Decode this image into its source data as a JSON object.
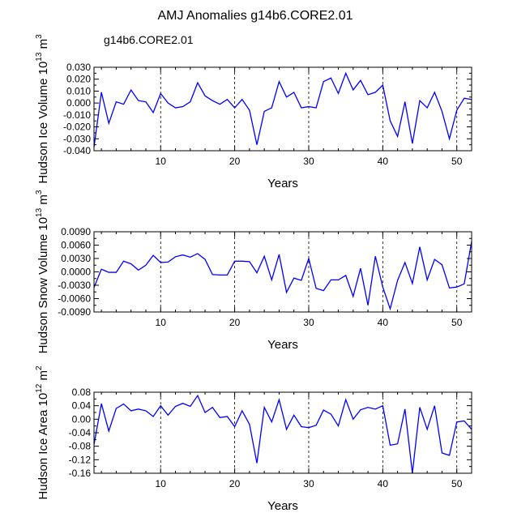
{
  "title": "AMJ Anomalies g14b6.CORE2.01",
  "legend_label": "g14b6.CORE2.01",
  "colors": {
    "series": "#0000ff",
    "axis": "#000000",
    "ref_line": "#000000"
  },
  "chart_data": [
    {
      "type": "line",
      "ylabel_main": "Hudson Ice Volume 10",
      "ylabel_exp": "13",
      "ylabel_unit": " m",
      "ylabel_unit_exp": "3",
      "xlabel": "Years",
      "xlim": [
        1,
        52
      ],
      "ylim": [
        -0.04,
        0.03
      ],
      "yticks": [
        -0.04,
        -0.03,
        -0.02,
        -0.01,
        0.0,
        0.01,
        0.02,
        0.03
      ],
      "ytick_labels": [
        "-0.040",
        "-0.030",
        "-0.020",
        "-0.010",
        "0.000",
        "0.010",
        "0.020",
        "0.030"
      ],
      "xticks": [
        10,
        20,
        30,
        40,
        50
      ],
      "xtick_labels": [
        "10",
        "20",
        "30",
        "40",
        "50"
      ],
      "ref_lines_x": [
        10,
        20,
        30,
        40,
        50
      ],
      "x": [
        1,
        2,
        3,
        4,
        5,
        6,
        7,
        8,
        9,
        10,
        11,
        12,
        13,
        14,
        15,
        16,
        17,
        18,
        19,
        20,
        21,
        22,
        23,
        24,
        25,
        26,
        27,
        28,
        29,
        30,
        31,
        32,
        33,
        34,
        35,
        36,
        37,
        38,
        39,
        40,
        41,
        42,
        43,
        44,
        45,
        46,
        47,
        48,
        49,
        50,
        51,
        52
      ],
      "values": [
        -0.037,
        0.009,
        -0.017,
        0.001,
        -0.001,
        0.011,
        0.002,
        0.001,
        -0.008,
        0.008,
        0.0,
        -0.004,
        -0.003,
        0.001,
        0.017,
        0.006,
        0.002,
        -0.001,
        0.003,
        -0.004,
        0.003,
        -0.006,
        -0.035,
        -0.007,
        -0.004,
        0.018,
        0.005,
        0.009,
        -0.004,
        -0.003,
        -0.004,
        0.018,
        0.021,
        0.008,
        0.025,
        0.011,
        0.019,
        0.007,
        0.009,
        0.015,
        -0.015,
        -0.028,
        0.001,
        -0.034,
        0.002,
        -0.004,
        0.009,
        -0.007,
        -0.03,
        -0.006,
        0.004,
        0.003
      ]
    },
    {
      "type": "line",
      "ylabel_main": "Hudson Snow Volume 10",
      "ylabel_exp": "13",
      "ylabel_unit": " m",
      "ylabel_unit_exp": "3",
      "xlabel": "Years",
      "xlim": [
        1,
        52
      ],
      "ylim": [
        -0.009,
        0.009
      ],
      "yticks": [
        -0.009,
        -0.006,
        -0.003,
        0.0,
        0.003,
        0.006,
        0.009
      ],
      "ytick_labels": [
        "-0.0090",
        "-0.0060",
        "-0.0030",
        "0.0000",
        "0.0030",
        "0.0060",
        "0.0090"
      ],
      "xticks": [
        10,
        20,
        30,
        40,
        50
      ],
      "xtick_labels": [
        "10",
        "20",
        "30",
        "40",
        "50"
      ],
      "ref_lines_x": [
        10,
        20,
        30,
        40,
        50
      ],
      "x": [
        1,
        2,
        3,
        4,
        5,
        6,
        7,
        8,
        9,
        10,
        11,
        12,
        13,
        14,
        15,
        16,
        17,
        18,
        19,
        20,
        21,
        22,
        23,
        24,
        25,
        26,
        27,
        28,
        29,
        30,
        31,
        32,
        33,
        34,
        35,
        36,
        37,
        38,
        39,
        40,
        41,
        42,
        43,
        44,
        45,
        46,
        47,
        48,
        49,
        50,
        51,
        52
      ],
      "values": [
        -0.0035,
        0.0006,
        -0.0001,
        -0.0001,
        0.0024,
        0.0018,
        0.0004,
        0.0015,
        0.0037,
        0.0021,
        0.0022,
        0.0034,
        0.0038,
        0.0033,
        0.0041,
        0.0028,
        -0.0006,
        -0.0007,
        -0.0007,
        0.0024,
        0.0024,
        0.0023,
        -0.0002,
        0.0035,
        -0.0018,
        0.0039,
        -0.0046,
        -0.0014,
        -0.0019,
        0.003,
        -0.0037,
        -0.0042,
        -0.0018,
        -0.0018,
        -0.0008,
        -0.0055,
        0.0008,
        -0.0075,
        0.0035,
        -0.0034,
        -0.0083,
        -0.0019,
        0.0021,
        -0.0026,
        0.0056,
        -0.0018,
        0.0028,
        0.0016,
        -0.0036,
        -0.0034,
        -0.0027,
        0.0068
      ]
    },
    {
      "type": "line",
      "ylabel_main": "Hudson Ice Area 10",
      "ylabel_exp": "12",
      "ylabel_unit": " m",
      "ylabel_unit_exp": "2",
      "xlabel": "Years",
      "xlim": [
        1,
        52
      ],
      "ylim": [
        -0.16,
        0.08
      ],
      "yticks": [
        -0.16,
        -0.12,
        -0.08,
        -0.04,
        0.0,
        0.04,
        0.08
      ],
      "ytick_labels": [
        "-0.16",
        "-0.12",
        "-0.08",
        "-0.04",
        "0.00",
        "0.04",
        "0.08"
      ],
      "xticks": [
        10,
        20,
        30,
        40,
        50
      ],
      "xtick_labels": [
        "10",
        "20",
        "30",
        "40",
        "50"
      ],
      "ref_lines_x": [
        10,
        20,
        30,
        40,
        50
      ],
      "x": [
        1,
        2,
        3,
        4,
        5,
        6,
        7,
        8,
        9,
        10,
        11,
        12,
        13,
        14,
        15,
        16,
        17,
        18,
        19,
        20,
        21,
        22,
        23,
        24,
        25,
        26,
        27,
        28,
        29,
        30,
        31,
        32,
        33,
        34,
        35,
        36,
        37,
        38,
        39,
        40,
        41,
        42,
        43,
        44,
        45,
        46,
        47,
        48,
        49,
        50,
        51,
        52
      ],
      "values": [
        -0.075,
        0.046,
        -0.035,
        0.032,
        0.045,
        0.025,
        0.03,
        0.025,
        0.008,
        0.04,
        0.012,
        0.038,
        0.047,
        0.038,
        0.07,
        0.02,
        0.035,
        0.005,
        0.008,
        -0.022,
        0.025,
        -0.015,
        -0.13,
        0.035,
        -0.008,
        0.058,
        -0.03,
        0.012,
        -0.022,
        -0.025,
        -0.018,
        0.027,
        0.015,
        -0.02,
        0.058,
        0.0,
        0.028,
        0.035,
        0.03,
        0.04,
        -0.077,
        -0.073,
        0.03,
        -0.16,
        0.035,
        -0.03,
        0.04,
        -0.1,
        -0.107,
        -0.008,
        -0.005,
        -0.03
      ]
    }
  ]
}
